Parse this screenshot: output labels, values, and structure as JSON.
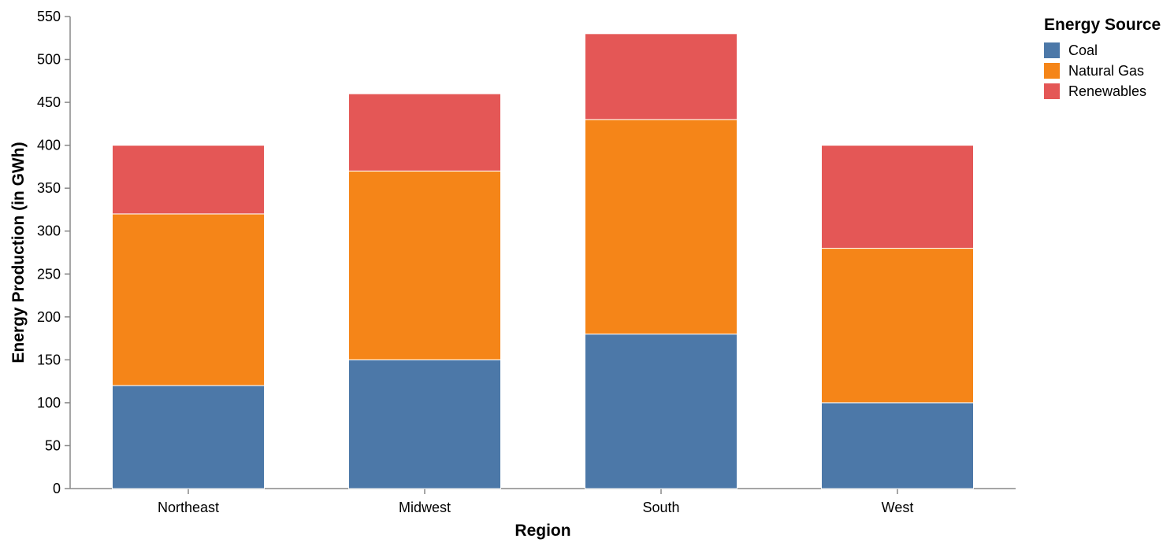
{
  "chart_data": {
    "type": "bar",
    "stacked": true,
    "title": "",
    "xlabel": "Region",
    "ylabel": "Energy Production (in GWh)",
    "ylim": [
      0,
      550
    ],
    "yticks": [
      0,
      50,
      100,
      150,
      200,
      250,
      300,
      350,
      400,
      450,
      500,
      550
    ],
    "grid": false,
    "categories": [
      "Northeast",
      "Midwest",
      "South",
      "West"
    ],
    "series": [
      {
        "name": "Coal",
        "color": "#4c78a8",
        "values": [
          120,
          150,
          180,
          100
        ]
      },
      {
        "name": "Natural Gas",
        "color": "#f58518",
        "values": [
          200,
          220,
          250,
          180
        ]
      },
      {
        "name": "Renewables",
        "color": "#e45756",
        "values": [
          80,
          90,
          100,
          120
        ]
      }
    ],
    "legend": {
      "title": "Energy Source",
      "placement": "top-right"
    }
  }
}
